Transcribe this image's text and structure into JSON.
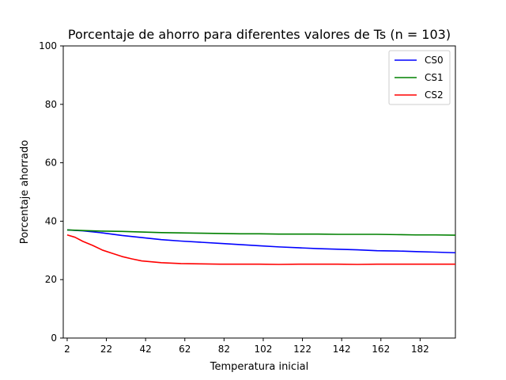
{
  "chart_data": {
    "type": "line",
    "title": "Porcentaje de ahorro para diferentes valores de Ts (n = 103)",
    "xlabel": "Temperatura inicial",
    "ylabel": "Porcentaje ahorrado",
    "xlim": [
      0,
      200
    ],
    "ylim": [
      0,
      100
    ],
    "xticks": [
      2,
      22,
      42,
      62,
      82,
      102,
      122,
      142,
      162,
      182
    ],
    "yticks": [
      0,
      20,
      40,
      60,
      80,
      100
    ],
    "grid": false,
    "legend_position": "top-right",
    "series": [
      {
        "name": "CS0",
        "color": "#0000ff",
        "points": [
          [
            2,
            37.0
          ],
          [
            10,
            36.7
          ],
          [
            20,
            36.0
          ],
          [
            30,
            35.1
          ],
          [
            40,
            34.4
          ],
          [
            50,
            33.7
          ],
          [
            60,
            33.2
          ],
          [
            70,
            32.8
          ],
          [
            80,
            32.4
          ],
          [
            90,
            32.0
          ],
          [
            100,
            31.6
          ],
          [
            110,
            31.2
          ],
          [
            120,
            30.9
          ],
          [
            130,
            30.6
          ],
          [
            140,
            30.4
          ],
          [
            150,
            30.2
          ],
          [
            160,
            29.9
          ],
          [
            170,
            29.8
          ],
          [
            180,
            29.6
          ],
          [
            190,
            29.4
          ],
          [
            200,
            29.2
          ]
        ]
      },
      {
        "name": "CS1",
        "color": "#008000",
        "points": [
          [
            2,
            37.0
          ],
          [
            10,
            36.8
          ],
          [
            20,
            36.6
          ],
          [
            30,
            36.5
          ],
          [
            40,
            36.3
          ],
          [
            50,
            36.1
          ],
          [
            60,
            36.0
          ],
          [
            70,
            35.9
          ],
          [
            80,
            35.8
          ],
          [
            90,
            35.7
          ],
          [
            100,
            35.7
          ],
          [
            110,
            35.6
          ],
          [
            120,
            35.6
          ],
          [
            130,
            35.6
          ],
          [
            140,
            35.5
          ],
          [
            150,
            35.5
          ],
          [
            160,
            35.5
          ],
          [
            170,
            35.4
          ],
          [
            180,
            35.3
          ],
          [
            190,
            35.3
          ],
          [
            200,
            35.2
          ]
        ]
      },
      {
        "name": "CS2",
        "color": "#ff0000",
        "points": [
          [
            2,
            35.3
          ],
          [
            6,
            34.5
          ],
          [
            10,
            33.1
          ],
          [
            15,
            31.7
          ],
          [
            20,
            30.1
          ],
          [
            25,
            29.0
          ],
          [
            30,
            27.9
          ],
          [
            35,
            27.1
          ],
          [
            40,
            26.4
          ],
          [
            45,
            26.1
          ],
          [
            50,
            25.8
          ],
          [
            60,
            25.5
          ],
          [
            70,
            25.4
          ],
          [
            80,
            25.3
          ],
          [
            90,
            25.3
          ],
          [
            100,
            25.3
          ],
          [
            110,
            25.2
          ],
          [
            120,
            25.3
          ],
          [
            130,
            25.3
          ],
          [
            140,
            25.3
          ],
          [
            150,
            25.2
          ],
          [
            160,
            25.3
          ],
          [
            170,
            25.3
          ],
          [
            180,
            25.3
          ],
          [
            190,
            25.3
          ],
          [
            200,
            25.3
          ]
        ]
      }
    ]
  }
}
